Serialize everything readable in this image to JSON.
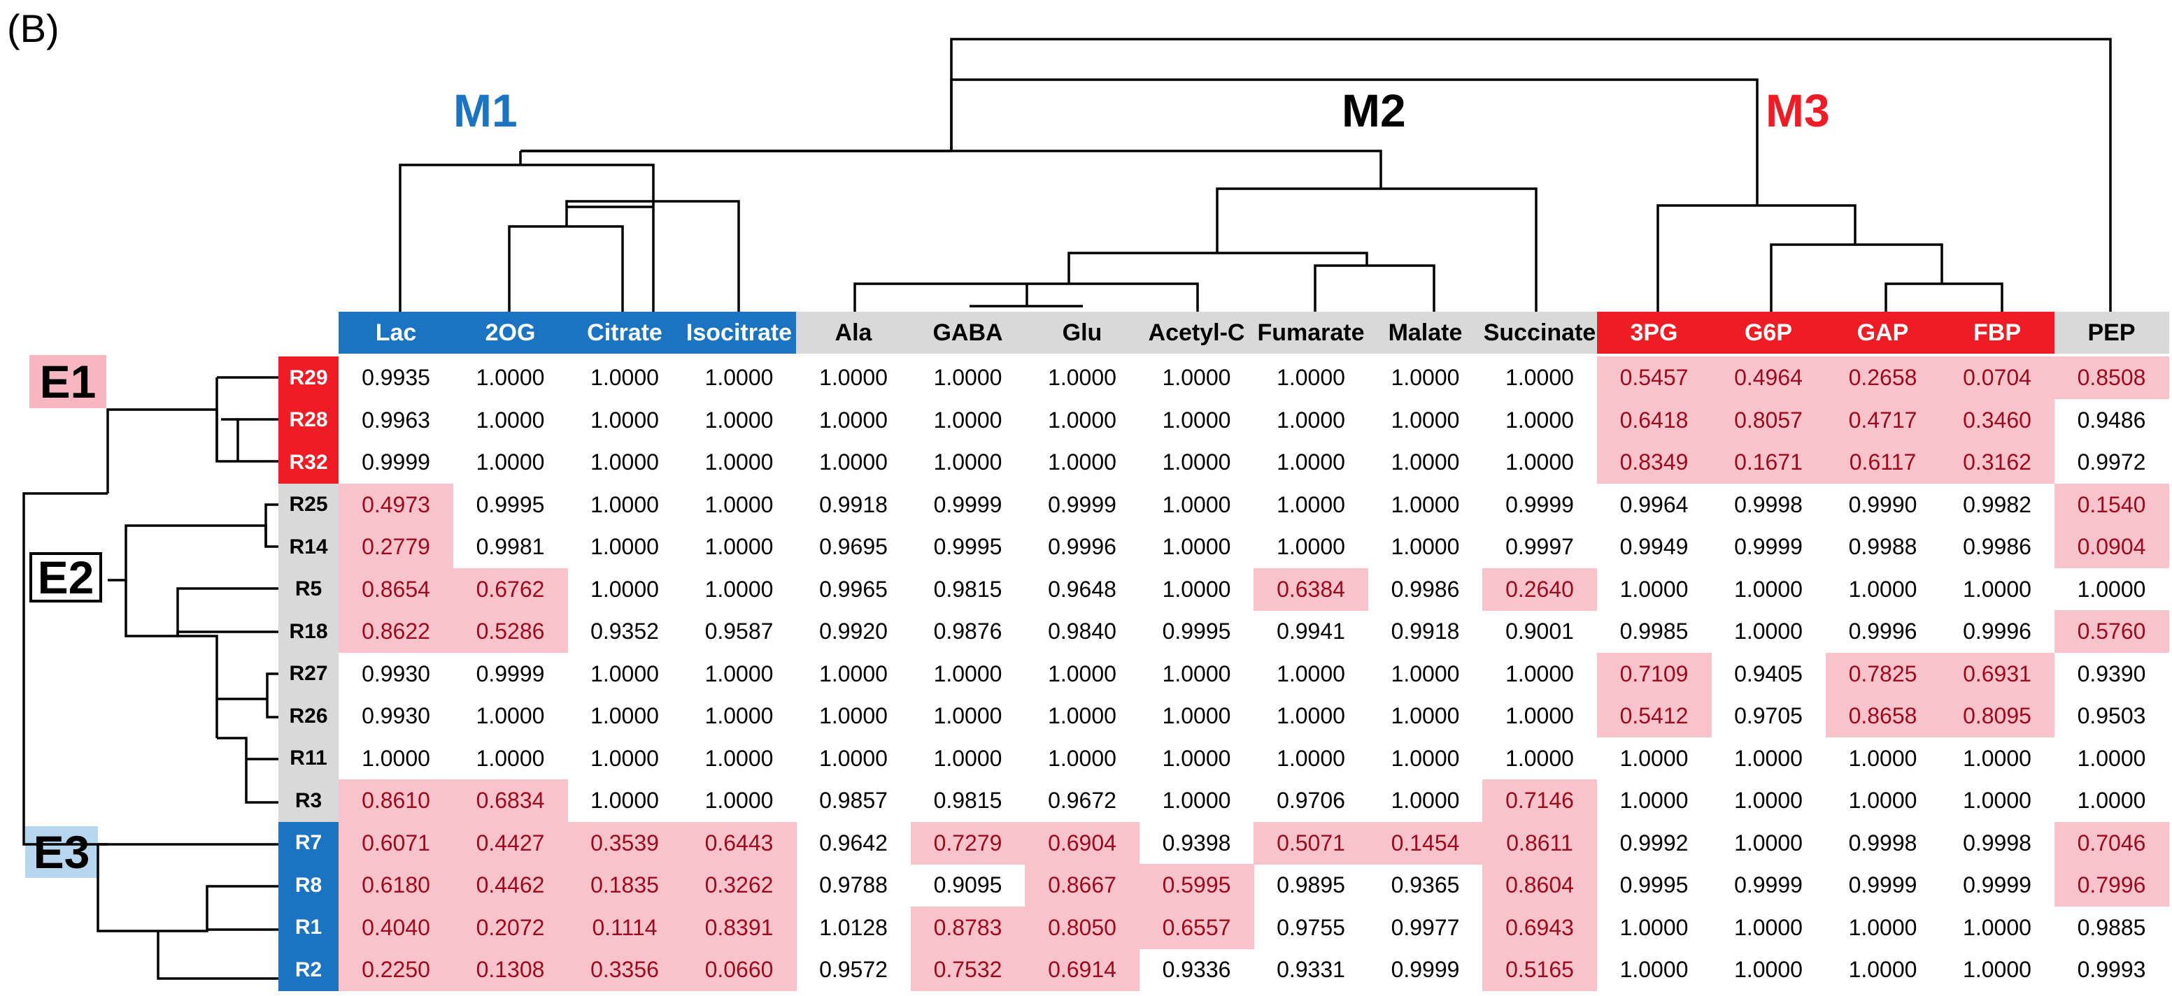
{
  "panel_label": "(B)",
  "modules": [
    {
      "id": "M1",
      "label": "M1",
      "color": "#1b73c1"
    },
    {
      "id": "M2",
      "label": "M2",
      "color": "#000000"
    },
    {
      "id": "M3",
      "label": "M3",
      "color": "#ee1c25"
    }
  ],
  "clusters": [
    {
      "id": "E1",
      "label": "E1",
      "bg": "#f7b7c0"
    },
    {
      "id": "E2",
      "label": "E2",
      "bg": "#ffffff"
    },
    {
      "id": "E3",
      "label": "E3",
      "bg": "#b7d7ee"
    }
  ],
  "chart_data": {
    "type": "table",
    "title": "",
    "columns": [
      {
        "name": "Lac",
        "module": "M1"
      },
      {
        "name": "2OG",
        "module": "M1"
      },
      {
        "name": "Citrate",
        "module": "M1"
      },
      {
        "name": "Isocitrate",
        "module": "M1"
      },
      {
        "name": "Ala",
        "module": "M2"
      },
      {
        "name": "GABA",
        "module": "M2"
      },
      {
        "name": "Glu",
        "module": "M2"
      },
      {
        "name": "Acetyl-C",
        "module": "M2"
      },
      {
        "name": "Fumarate",
        "module": "M2"
      },
      {
        "name": "Malate",
        "module": "M2"
      },
      {
        "name": "Succinate",
        "module": "M2"
      },
      {
        "name": "3PG",
        "module": "M3"
      },
      {
        "name": "G6P",
        "module": "M3"
      },
      {
        "name": "GAP",
        "module": "M3"
      },
      {
        "name": "FBP",
        "module": "M3"
      },
      {
        "name": "PEP",
        "module": "M2"
      }
    ],
    "rows": [
      {
        "name": "R29",
        "cluster": "E1",
        "values": [
          "0.9935",
          "1.0000",
          "1.0000",
          "1.0000",
          "1.0000",
          "1.0000",
          "1.0000",
          "1.0000",
          "1.0000",
          "1.0000",
          "1.0000",
          "0.5457",
          "0.4964",
          "0.2658",
          "0.0704",
          "0.8508"
        ],
        "highlight": [
          0,
          0,
          0,
          0,
          0,
          0,
          0,
          0,
          0,
          0,
          0,
          1,
          1,
          1,
          1,
          1
        ]
      },
      {
        "name": "R28",
        "cluster": "E1",
        "values": [
          "0.9963",
          "1.0000",
          "1.0000",
          "1.0000",
          "1.0000",
          "1.0000",
          "1.0000",
          "1.0000",
          "1.0000",
          "1.0000",
          "1.0000",
          "0.6418",
          "0.8057",
          "0.4717",
          "0.3460",
          "0.9486"
        ],
        "highlight": [
          0,
          0,
          0,
          0,
          0,
          0,
          0,
          0,
          0,
          0,
          0,
          1,
          1,
          1,
          1,
          0
        ]
      },
      {
        "name": "R32",
        "cluster": "E1",
        "values": [
          "0.9999",
          "1.0000",
          "1.0000",
          "1.0000",
          "1.0000",
          "1.0000",
          "1.0000",
          "1.0000",
          "1.0000",
          "1.0000",
          "1.0000",
          "0.8349",
          "0.1671",
          "0.6117",
          "0.3162",
          "0.9972"
        ],
        "highlight": [
          0,
          0,
          0,
          0,
          0,
          0,
          0,
          0,
          0,
          0,
          0,
          1,
          1,
          1,
          1,
          0
        ]
      },
      {
        "name": "R25",
        "cluster": "E2",
        "values": [
          "0.4973",
          "0.9995",
          "1.0000",
          "1.0000",
          "0.9918",
          "0.9999",
          "0.9999",
          "1.0000",
          "1.0000",
          "1.0000",
          "0.9999",
          "0.9964",
          "0.9998",
          "0.9990",
          "0.9982",
          "0.1540"
        ],
        "highlight": [
          1,
          0,
          0,
          0,
          0,
          0,
          0,
          0,
          0,
          0,
          0,
          0,
          0,
          0,
          0,
          1
        ]
      },
      {
        "name": "R14",
        "cluster": "E2",
        "values": [
          "0.2779",
          "0.9981",
          "1.0000",
          "1.0000",
          "0.9695",
          "0.9995",
          "0.9996",
          "1.0000",
          "1.0000",
          "1.0000",
          "0.9997",
          "0.9949",
          "0.9999",
          "0.9988",
          "0.9986",
          "0.0904"
        ],
        "highlight": [
          1,
          0,
          0,
          0,
          0,
          0,
          0,
          0,
          0,
          0,
          0,
          0,
          0,
          0,
          0,
          1
        ]
      },
      {
        "name": "R5",
        "cluster": "E2",
        "values": [
          "0.8654",
          "0.6762",
          "1.0000",
          "1.0000",
          "0.9965",
          "0.9815",
          "0.9648",
          "1.0000",
          "0.6384",
          "0.9986",
          "0.2640",
          "1.0000",
          "1.0000",
          "1.0000",
          "1.0000",
          "1.0000"
        ],
        "highlight": [
          1,
          1,
          0,
          0,
          0,
          0,
          0,
          0,
          1,
          0,
          1,
          0,
          0,
          0,
          0,
          0
        ]
      },
      {
        "name": "R18",
        "cluster": "E2",
        "values": [
          "0.8622",
          "0.5286",
          "0.9352",
          "0.9587",
          "0.9920",
          "0.9876",
          "0.9840",
          "0.9995",
          "0.9941",
          "0.9918",
          "0.9001",
          "0.9985",
          "1.0000",
          "0.9996",
          "0.9996",
          "0.5760"
        ],
        "highlight": [
          1,
          1,
          0,
          0,
          0,
          0,
          0,
          0,
          0,
          0,
          0,
          0,
          0,
          0,
          0,
          1
        ]
      },
      {
        "name": "R27",
        "cluster": "E2",
        "values": [
          "0.9930",
          "0.9999",
          "1.0000",
          "1.0000",
          "1.0000",
          "1.0000",
          "1.0000",
          "1.0000",
          "1.0000",
          "1.0000",
          "1.0000",
          "0.7109",
          "0.9405",
          "0.7825",
          "0.6931",
          "0.9390"
        ],
        "highlight": [
          0,
          0,
          0,
          0,
          0,
          0,
          0,
          0,
          0,
          0,
          0,
          1,
          0,
          1,
          1,
          0
        ]
      },
      {
        "name": "R26",
        "cluster": "E2",
        "values": [
          "0.9930",
          "1.0000",
          "1.0000",
          "1.0000",
          "1.0000",
          "1.0000",
          "1.0000",
          "1.0000",
          "1.0000",
          "1.0000",
          "1.0000",
          "0.5412",
          "0.9705",
          "0.8658",
          "0.8095",
          "0.9503"
        ],
        "highlight": [
          0,
          0,
          0,
          0,
          0,
          0,
          0,
          0,
          0,
          0,
          0,
          1,
          0,
          1,
          1,
          0
        ]
      },
      {
        "name": "R11",
        "cluster": "E2",
        "values": [
          "1.0000",
          "1.0000",
          "1.0000",
          "1.0000",
          "1.0000",
          "1.0000",
          "1.0000",
          "1.0000",
          "1.0000",
          "1.0000",
          "1.0000",
          "1.0000",
          "1.0000",
          "1.0000",
          "1.0000",
          "1.0000"
        ],
        "highlight": [
          0,
          0,
          0,
          0,
          0,
          0,
          0,
          0,
          0,
          0,
          0,
          0,
          0,
          0,
          0,
          0
        ]
      },
      {
        "name": "R3",
        "cluster": "E2",
        "values": [
          "0.8610",
          "0.6834",
          "1.0000",
          "1.0000",
          "0.9857",
          "0.9815",
          "0.9672",
          "1.0000",
          "0.9706",
          "1.0000",
          "0.7146",
          "1.0000",
          "1.0000",
          "1.0000",
          "1.0000",
          "1.0000"
        ],
        "highlight": [
          1,
          1,
          0,
          0,
          0,
          0,
          0,
          0,
          0,
          0,
          1,
          0,
          0,
          0,
          0,
          0
        ]
      },
      {
        "name": "R7",
        "cluster": "E3",
        "values": [
          "0.6071",
          "0.4427",
          "0.3539",
          "0.6443",
          "0.9642",
          "0.7279",
          "0.6904",
          "0.9398",
          "0.5071",
          "0.1454",
          "0.8611",
          "0.9992",
          "1.0000",
          "0.9998",
          "0.9998",
          "0.7046"
        ],
        "highlight": [
          1,
          1,
          1,
          1,
          0,
          1,
          1,
          0,
          1,
          1,
          1,
          0,
          0,
          0,
          0,
          1
        ]
      },
      {
        "name": "R8",
        "cluster": "E3",
        "values": [
          "0.6180",
          "0.4462",
          "0.1835",
          "0.3262",
          "0.9788",
          "0.9095",
          "0.8667",
          "0.5995",
          "0.9895",
          "0.9365",
          "0.8604",
          "0.9995",
          "0.9999",
          "0.9999",
          "0.9999",
          "0.7996"
        ],
        "highlight": [
          1,
          1,
          1,
          1,
          0,
          0,
          1,
          1,
          0,
          0,
          1,
          0,
          0,
          0,
          0,
          1
        ]
      },
      {
        "name": "R1",
        "cluster": "E3",
        "values": [
          "0.4040",
          "0.2072",
          "0.1114",
          "0.8391",
          "1.0128",
          "0.8783",
          "0.8050",
          "0.6557",
          "0.9755",
          "0.9977",
          "0.6943",
          "1.0000",
          "1.0000",
          "1.0000",
          "1.0000",
          "0.9885"
        ],
        "highlight": [
          1,
          1,
          1,
          1,
          0,
          1,
          1,
          1,
          0,
          0,
          1,
          0,
          0,
          0,
          0,
          0
        ]
      },
      {
        "name": "R2",
        "cluster": "E3",
        "values": [
          "0.2250",
          "0.1308",
          "0.3356",
          "0.0660",
          "0.9572",
          "0.7532",
          "0.6914",
          "0.9336",
          "0.9331",
          "0.9999",
          "0.5165",
          "1.0000",
          "1.0000",
          "1.0000",
          "1.0000",
          "0.9993"
        ],
        "highlight": [
          1,
          1,
          1,
          1,
          0,
          1,
          1,
          0,
          0,
          0,
          1,
          0,
          0,
          0,
          0,
          0
        ]
      }
    ]
  }
}
